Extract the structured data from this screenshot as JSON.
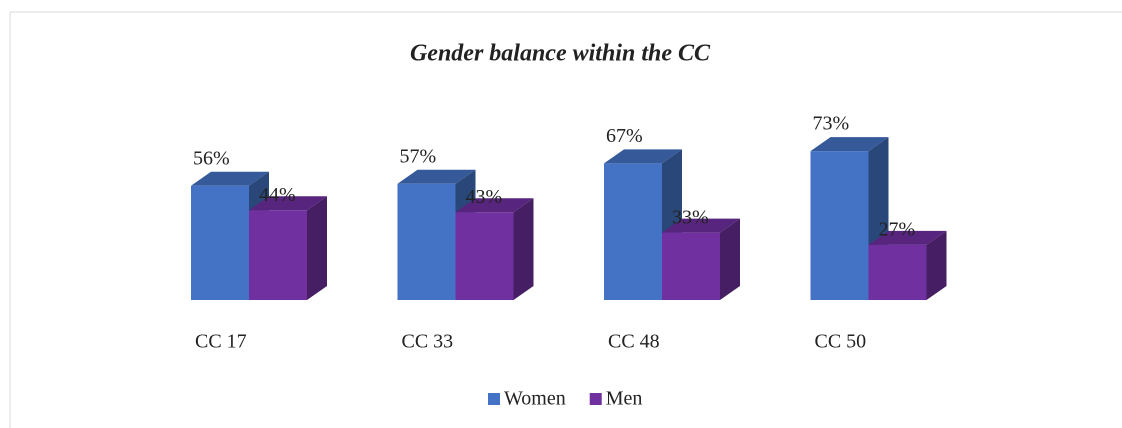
{
  "chart_data": {
    "type": "bar3d",
    "title": "Gender balance within the CC",
    "categories": [
      "CC 17",
      "CC 33",
      "CC 48",
      "CC 50"
    ],
    "series": [
      {
        "name": "Women",
        "color": "#4472c4",
        "values": [
          56,
          57,
          67,
          73
        ],
        "value_labels": [
          "56%",
          "57%",
          "67%",
          "73%"
        ]
      },
      {
        "name": "Men",
        "color": "#7030a0",
        "values": [
          44,
          43,
          33,
          27
        ],
        "value_labels": [
          "44%",
          "43%",
          "33%",
          "27%"
        ]
      }
    ],
    "legend": "bottom"
  }
}
